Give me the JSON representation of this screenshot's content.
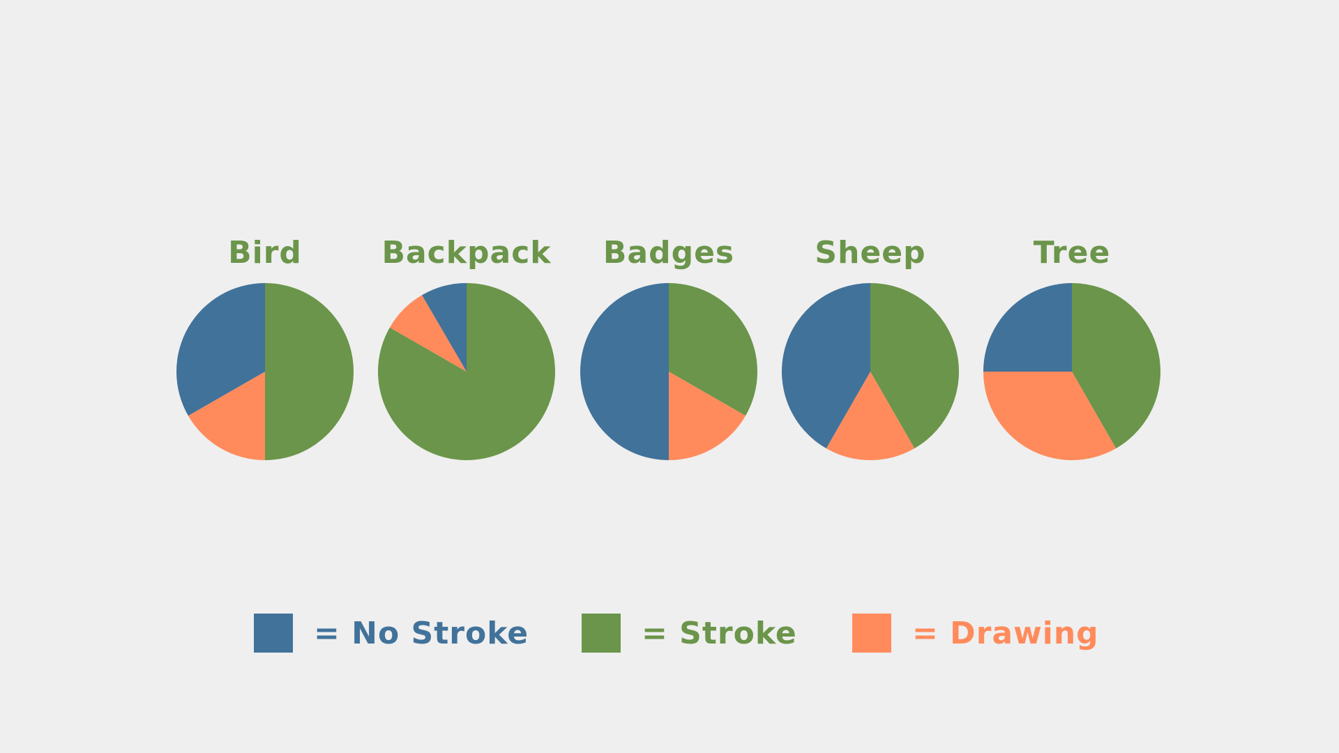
{
  "colors": {
    "no_stroke": "#41729a",
    "stroke": "#6b954a",
    "drawing": "#ff8b5c",
    "title": "#6b954a"
  },
  "legend": [
    {
      "key": "no_stroke",
      "label": "= No Stroke"
    },
    {
      "key": "stroke",
      "label": "= Stroke"
    },
    {
      "key": "drawing",
      "label": "= Drawing"
    }
  ],
  "chart_data": [
    {
      "type": "pie",
      "title": "Bird",
      "slices": [
        {
          "key": "stroke",
          "value": 50
        },
        {
          "key": "drawing",
          "value": 16.7
        },
        {
          "key": "no_stroke",
          "value": 33.3
        }
      ]
    },
    {
      "type": "pie",
      "title": "Backpack",
      "slices": [
        {
          "key": "stroke",
          "value": 83.3
        },
        {
          "key": "drawing",
          "value": 8.3
        },
        {
          "key": "no_stroke",
          "value": 8.4
        }
      ]
    },
    {
      "type": "pie",
      "title": "Badges",
      "slices": [
        {
          "key": "stroke",
          "value": 33.3
        },
        {
          "key": "drawing",
          "value": 16.7
        },
        {
          "key": "no_stroke",
          "value": 50
        }
      ]
    },
    {
      "type": "pie",
      "title": "Sheep",
      "slices": [
        {
          "key": "stroke",
          "value": 41.7
        },
        {
          "key": "drawing",
          "value": 16.6
        },
        {
          "key": "no_stroke",
          "value": 41.7
        }
      ]
    },
    {
      "type": "pie",
      "title": "Tree",
      "slices": [
        {
          "key": "stroke",
          "value": 41.7
        },
        {
          "key": "drawing",
          "value": 33.3
        },
        {
          "key": "no_stroke",
          "value": 25
        }
      ]
    }
  ]
}
